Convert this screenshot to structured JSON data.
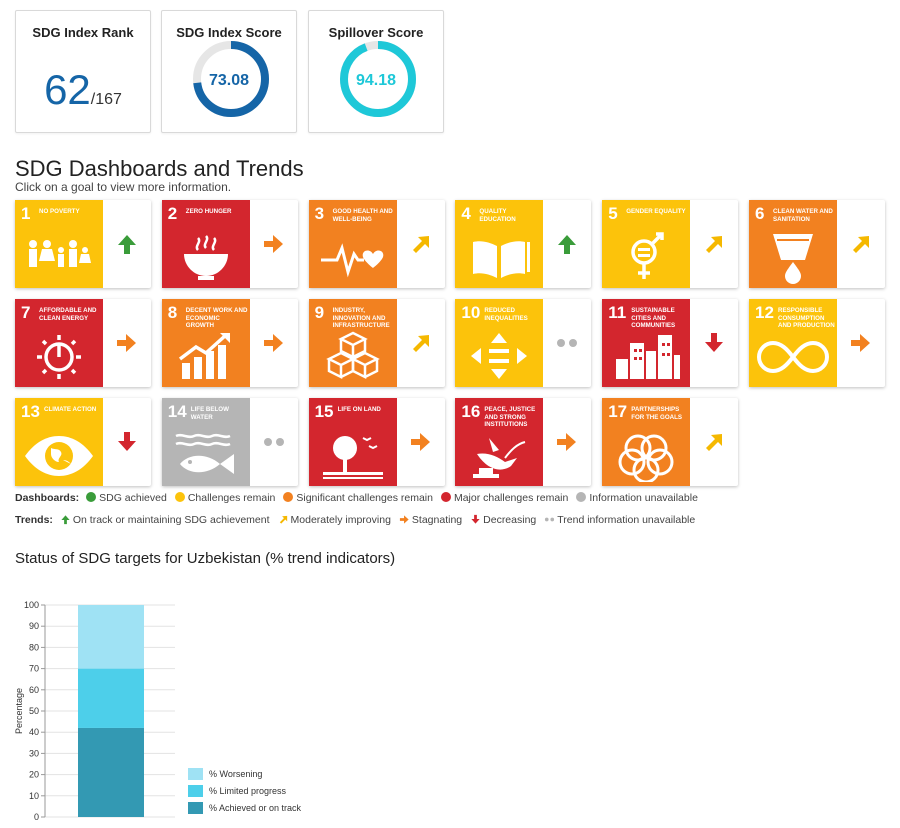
{
  "cards": {
    "rank": {
      "title": "SDG Index Rank",
      "value": "62",
      "total": "/167"
    },
    "index_score": {
      "title": "SDG Index Score",
      "value": "73.08",
      "percent": 73.08,
      "color": "#1565a7"
    },
    "spillover": {
      "title": "Spillover Score",
      "value": "94.18",
      "percent": 94.18,
      "color": "#1ec8d8"
    }
  },
  "section": {
    "title": "SDG Dashboards and Trends",
    "subtitle": "Click on a goal to view more information."
  },
  "goals": [
    {
      "num": "1",
      "name": "No Poverty",
      "color": "#fcc30b",
      "icon": "family-icon",
      "trend": "up"
    },
    {
      "num": "2",
      "name": "Zero Hunger",
      "color": "#d3262e",
      "icon": "bowl-icon",
      "trend": "right"
    },
    {
      "num": "3",
      "name": "Good Health and Well-Being",
      "color": "#f28120",
      "icon": "heartbeat-icon",
      "trend": "diag"
    },
    {
      "num": "4",
      "name": "Quality Education",
      "color": "#fcc30b",
      "icon": "book-icon",
      "trend": "up"
    },
    {
      "num": "5",
      "name": "Gender Equality",
      "color": "#fcc30b",
      "icon": "gender-icon",
      "trend": "diag"
    },
    {
      "num": "6",
      "name": "Clean Water and Sanitation",
      "color": "#f28120",
      "icon": "water-drop-icon",
      "trend": "diag"
    },
    {
      "num": "7",
      "name": "Affordable and Clean Energy",
      "color": "#d3262e",
      "icon": "power-sun-icon",
      "trend": "right"
    },
    {
      "num": "8",
      "name": "Decent Work and Economic Growth",
      "color": "#f28120",
      "icon": "growth-chart-icon",
      "trend": "right"
    },
    {
      "num": "9",
      "name": "Industry, Innovation and Infrastructure",
      "color": "#f28120",
      "icon": "cubes-icon",
      "trend": "diag"
    },
    {
      "num": "10",
      "name": "Reduced Inequalities",
      "color": "#fcc30b",
      "icon": "equality-arrows-icon",
      "trend": "dots"
    },
    {
      "num": "11",
      "name": "Sustainable Cities and Communities",
      "color": "#d3262e",
      "icon": "city-icon",
      "trend": "down"
    },
    {
      "num": "12",
      "name": "Responsible Consumption and Production",
      "color": "#fcc30b",
      "icon": "infinity-icon",
      "trend": "right"
    },
    {
      "num": "13",
      "name": "Climate Action",
      "color": "#fcc30b",
      "icon": "eye-globe-icon",
      "trend": "down"
    },
    {
      "num": "14",
      "name": "Life Below Water",
      "color": "#b5b5b5",
      "icon": "fish-icon",
      "trend": "dots"
    },
    {
      "num": "15",
      "name": "Life on Land",
      "color": "#d3262e",
      "icon": "tree-icon",
      "trend": "right"
    },
    {
      "num": "16",
      "name": "Peace, Justice and Strong Institutions",
      "color": "#d3262e",
      "icon": "dove-icon",
      "trend": "right"
    },
    {
      "num": "17",
      "name": "Partnerships for the Goals",
      "color": "#f28120",
      "icon": "rings-icon",
      "trend": "diag"
    }
  ],
  "trend_colors": {
    "up": "#3a9c3a",
    "diag": "#f5b800",
    "right": "#f28120",
    "down": "#d3262e",
    "dots": "#b5b5b5"
  },
  "legend": {
    "dashboards_label": "Dashboards:",
    "dashboards": [
      {
        "label": "SDG achieved",
        "color": "#3a9c3a"
      },
      {
        "label": "Challenges remain",
        "color": "#fcc30b"
      },
      {
        "label": "Significant challenges remain",
        "color": "#f28120"
      },
      {
        "label": "Major challenges remain",
        "color": "#d3262e"
      },
      {
        "label": "Information unavailable",
        "color": "#b5b5b5"
      }
    ],
    "trends_label": "Trends:",
    "trends": [
      {
        "label": "On track or maintaining SDG achievement",
        "type": "up"
      },
      {
        "label": "Moderately improving",
        "type": "diag"
      },
      {
        "label": "Stagnating",
        "type": "right"
      },
      {
        "label": "Decreasing",
        "type": "down"
      },
      {
        "label": "Trend information unavailable",
        "type": "dots"
      }
    ]
  },
  "chart_title": "Status of SDG targets for Uzbekistan (% trend indicators)",
  "chart_data": {
    "type": "bar",
    "stacked": true,
    "categories": [
      ""
    ],
    "ylabel": "Percentage",
    "ylim": [
      0,
      100
    ],
    "yticks": [
      0,
      10,
      20,
      30,
      40,
      50,
      60,
      70,
      80,
      90,
      100
    ],
    "series": [
      {
        "name": "% Achieved or on track",
        "values": [
          42
        ],
        "color": "#3399b3"
      },
      {
        "name": "% Limited progress",
        "values": [
          28
        ],
        "color": "#4dcfea"
      },
      {
        "name": "% Worsening",
        "values": [
          30
        ],
        "color": "#9fe2f4"
      }
    ],
    "legend_order": [
      "% Worsening",
      "% Limited progress",
      "% Achieved or on track"
    ]
  }
}
